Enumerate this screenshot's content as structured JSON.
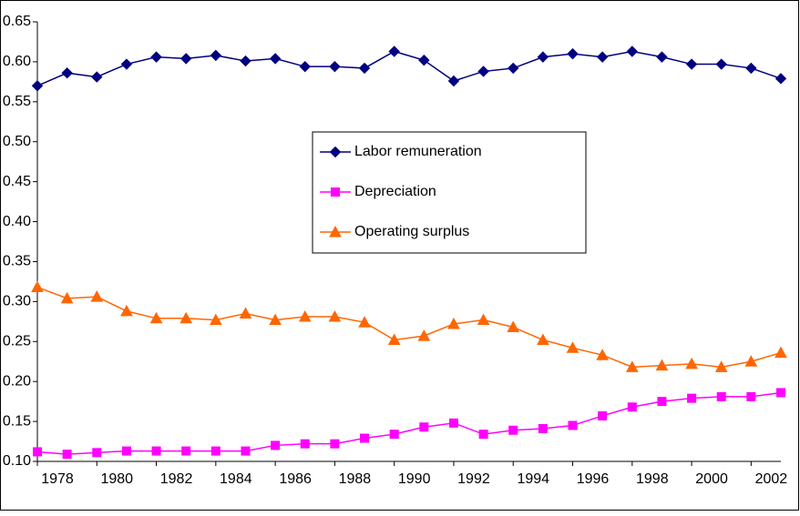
{
  "chart_data": {
    "type": "line",
    "x": [
      1978,
      1979,
      1980,
      1981,
      1982,
      1983,
      1984,
      1985,
      1986,
      1987,
      1988,
      1989,
      1990,
      1991,
      1992,
      1993,
      1994,
      1995,
      1996,
      1997,
      1998,
      1999,
      2000,
      2001,
      2002,
      2003
    ],
    "series": [
      {
        "name": "Labor remuneration",
        "color": "#000080",
        "marker": "diamond",
        "values": [
          0.57,
          0.586,
          0.581,
          0.597,
          0.606,
          0.604,
          0.608,
          0.601,
          0.604,
          0.594,
          0.594,
          0.592,
          0.613,
          0.602,
          0.576,
          0.588,
          0.592,
          0.606,
          0.61,
          0.606,
          0.613,
          0.606,
          0.597,
          0.597,
          0.592,
          0.579
        ]
      },
      {
        "name": "Depreciation",
        "color": "#ff00ff",
        "marker": "square",
        "values": [
          0.112,
          0.109,
          0.111,
          0.113,
          0.113,
          0.113,
          0.113,
          0.113,
          0.12,
          0.122,
          0.122,
          0.129,
          0.134,
          0.143,
          0.148,
          0.134,
          0.139,
          0.141,
          0.145,
          0.157,
          0.168,
          0.175,
          0.179,
          0.181,
          0.181,
          0.186
        ]
      },
      {
        "name": "Operating surplus",
        "color": "#ff6600",
        "marker": "triangle",
        "values": [
          0.318,
          0.304,
          0.306,
          0.288,
          0.279,
          0.279,
          0.277,
          0.285,
          0.277,
          0.281,
          0.281,
          0.274,
          0.252,
          0.257,
          0.272,
          0.277,
          0.268,
          0.252,
          0.242,
          0.233,
          0.218,
          0.22,
          0.222,
          0.218,
          0.225,
          0.236
        ]
      }
    ],
    "xlim": [
      1978,
      2003
    ],
    "xticks": [
      1978,
      1980,
      1982,
      1984,
      1986,
      1988,
      1990,
      1992,
      1994,
      1996,
      1998,
      2000,
      2002
    ],
    "ylim": [
      0.1,
      0.65
    ],
    "yticks": [
      {
        "value": 0.1,
        "label": "0.10"
      },
      {
        "value": 0.15,
        "label": "0.15"
      },
      {
        "value": 0.2,
        "label": "0.20"
      },
      {
        "value": 0.25,
        "label": "0.25"
      },
      {
        "value": 0.3,
        "label": "0.30"
      },
      {
        "value": 0.35,
        "label": "0.35"
      },
      {
        "value": 0.4,
        "label": "0.40"
      },
      {
        "value": 0.45,
        "label": "0.45"
      },
      {
        "value": 0.5,
        "label": "0.50"
      },
      {
        "value": 0.55,
        "label": "0.55"
      },
      {
        "value": 0.6,
        "label": "0.60"
      },
      {
        "value": 0.65,
        "label": "0.65"
      }
    ],
    "grid": false
  }
}
